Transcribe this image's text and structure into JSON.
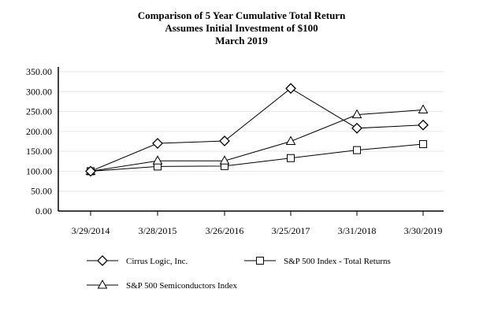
{
  "chart_data": {
    "type": "line",
    "title": [
      "Comparison of 5 Year Cumulative Total Return",
      "Assumes Initial Investment of $100",
      "March 2019"
    ],
    "xlabel": "",
    "ylabel": "",
    "categories": [
      "3/29/2014",
      "3/28/2015",
      "3/26/2016",
      "3/25/2017",
      "3/31/2018",
      "3/30/2019"
    ],
    "yticks": [
      "0.00",
      "50.00",
      "100.00",
      "150.00",
      "200.00",
      "250.00",
      "300.00",
      "350.00"
    ],
    "ylim": [
      0,
      350
    ],
    "grid": true,
    "legend_position": "bottom",
    "series": [
      {
        "name": "Cirrus Logic, Inc.",
        "marker": "diamond",
        "values": [
          100,
          170,
          176,
          308,
          208,
          216
        ]
      },
      {
        "name": "S&P 500 Index - Total Returns",
        "marker": "square",
        "values": [
          100,
          112,
          113,
          133,
          153,
          168
        ]
      },
      {
        "name": "S&P 500 Semiconductors Index",
        "marker": "triangle",
        "values": [
          100,
          126,
          126,
          175,
          242,
          254
        ]
      }
    ],
    "colors": {
      "line": "#000000",
      "grid": "#e6e6e6"
    }
  }
}
